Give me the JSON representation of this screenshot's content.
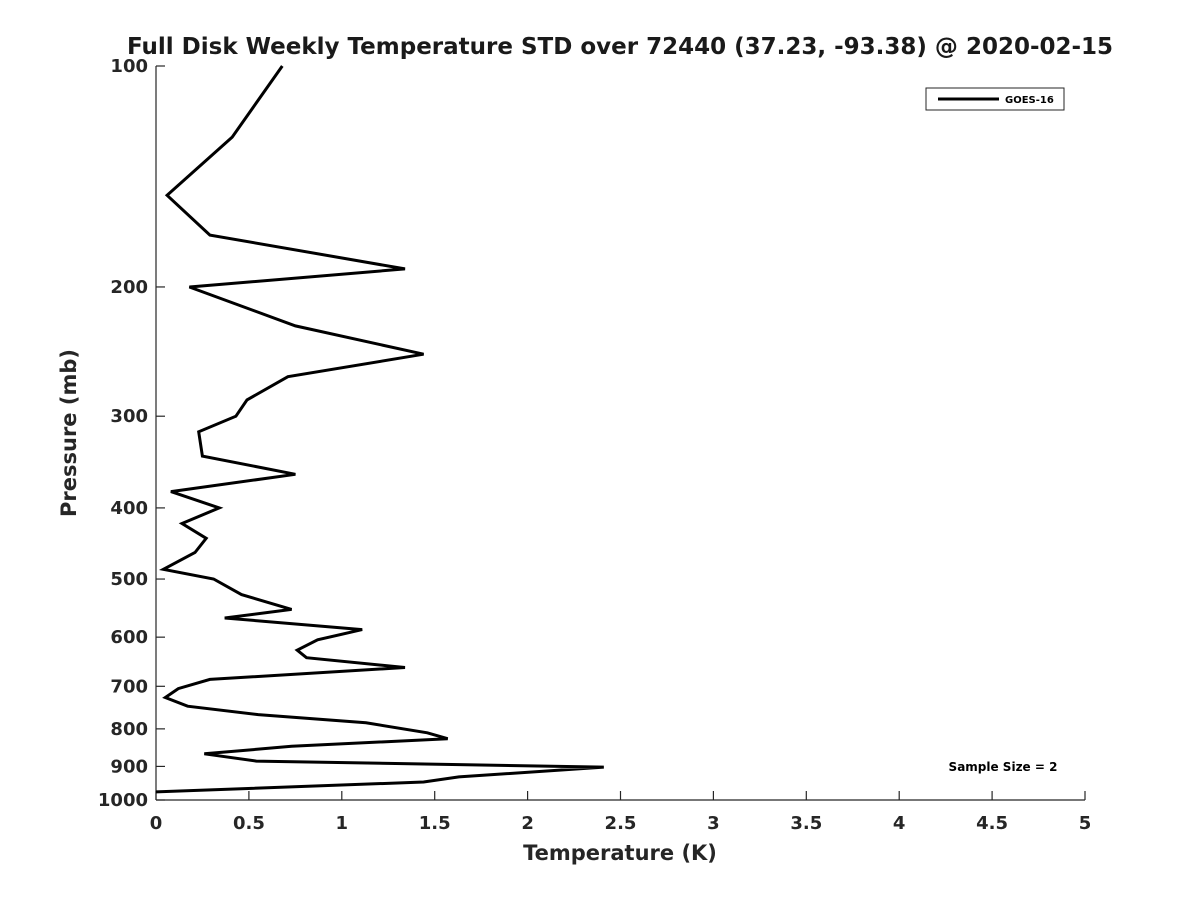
{
  "chart_data": {
    "type": "line",
    "title": "Full Disk Weekly Temperature STD over 72440 (37.23, -93.38) @ 2020-02-15",
    "xlabel": "Temperature (K)",
    "ylabel": "Pressure (mb)",
    "xlim": [
      0,
      5
    ],
    "ylim": [
      100,
      1000
    ],
    "y_scale": "log",
    "y_reversed": true,
    "x_ticks": [
      "0",
      "0.5",
      "1",
      "1.5",
      "2",
      "2.5",
      "3",
      "3.5",
      "4",
      "4.5",
      "5"
    ],
    "y_ticks": [
      "100",
      "200",
      "300",
      "400",
      "500",
      "600",
      "700",
      "800",
      "900",
      "1000"
    ],
    "grid": false,
    "legend_position": "top-right",
    "annotation": "Sample Size = 2",
    "series": [
      {
        "name": "GOES-16",
        "color": "#000000",
        "points": [
          [
            0.68,
            100
          ],
          [
            0.41,
            125
          ],
          [
            0.06,
            150
          ],
          [
            0.29,
            170
          ],
          [
            1.34,
            189
          ],
          [
            0.18,
            200
          ],
          [
            0.75,
            226
          ],
          [
            1.44,
            247
          ],
          [
            0.71,
            265
          ],
          [
            0.49,
            285
          ],
          [
            0.43,
            300
          ],
          [
            0.23,
            315
          ],
          [
            0.25,
            340
          ],
          [
            0.75,
            360
          ],
          [
            0.08,
            380
          ],
          [
            0.34,
            400
          ],
          [
            0.14,
            420
          ],
          [
            0.27,
            440
          ],
          [
            0.21,
            460
          ],
          [
            0.04,
            485
          ],
          [
            0.31,
            500
          ],
          [
            0.46,
            525
          ],
          [
            0.73,
            550
          ],
          [
            0.37,
            565
          ],
          [
            1.11,
            586
          ],
          [
            0.87,
            605
          ],
          [
            0.76,
            625
          ],
          [
            0.81,
            640
          ],
          [
            1.34,
            660
          ],
          [
            0.29,
            685
          ],
          [
            0.12,
            705
          ],
          [
            0.05,
            725
          ],
          [
            0.17,
            745
          ],
          [
            0.55,
            765
          ],
          [
            1.13,
            785
          ],
          [
            1.46,
            810
          ],
          [
            1.57,
            825
          ],
          [
            0.73,
            845
          ],
          [
            0.26,
            865
          ],
          [
            0.54,
            885
          ],
          [
            2.41,
            902
          ],
          [
            1.63,
            930
          ],
          [
            1.44,
            945
          ],
          [
            0.0,
            975
          ]
        ]
      }
    ]
  }
}
